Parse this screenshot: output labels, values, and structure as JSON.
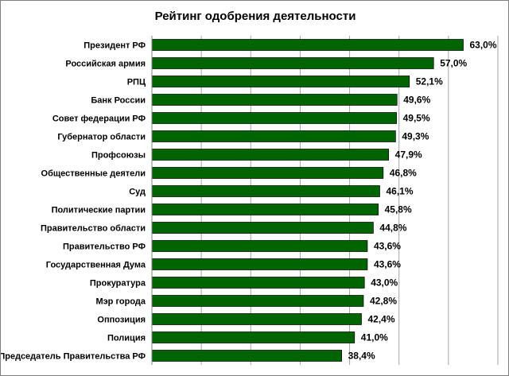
{
  "chart_data": {
    "type": "bar",
    "orientation": "horizontal",
    "title": "Рейтинг одобрения деятельности",
    "xlabel": "",
    "ylabel": "",
    "xlim": [
      0,
      70
    ],
    "grid": true,
    "bar_color": "#006400",
    "categories": [
      "Президент РФ",
      "Российская армия",
      "РПЦ",
      "Банк России",
      "Совет федерации РФ",
      "Губернатор области",
      "Профсоюзы",
      "Общественные деятели",
      "Суд",
      "Политические партии",
      "Правительство области",
      "Правительство РФ",
      "Государственная Дума",
      "Прокуратура",
      "Мэр города",
      "Оппозиция",
      "Полиция",
      "Председатель Правительства РФ"
    ],
    "values": [
      63.0,
      57.0,
      52.1,
      49.6,
      49.5,
      49.3,
      47.9,
      46.8,
      46.1,
      45.8,
      44.8,
      43.6,
      43.6,
      43.0,
      42.8,
      42.4,
      41.0,
      38.4
    ],
    "value_labels": [
      "63,0%",
      "57,0%",
      "52,1%",
      "49,6%",
      "49,5%",
      "49,3%",
      "47,9%",
      "46,8%",
      "46,1%",
      "45,8%",
      "44,8%",
      "43,6%",
      "43,6%",
      "43,0%",
      "42,8%",
      "42,4%",
      "41,0%",
      "38,4%"
    ]
  }
}
